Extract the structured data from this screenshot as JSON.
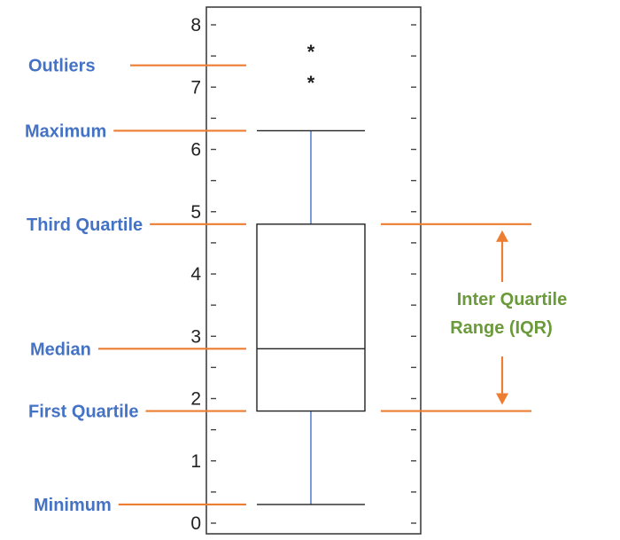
{
  "chart_data": {
    "type": "box",
    "ylim": [
      0,
      8
    ],
    "yticks": [
      "0",
      "1",
      "2",
      "3",
      "4",
      "5",
      "6",
      "7",
      "8"
    ],
    "box": {
      "min": 0.3,
      "q1": 1.8,
      "median": 2.8,
      "q3": 4.8,
      "max": 6.3
    },
    "outliers": [
      {
        "value": 7.1,
        "marker": "*"
      },
      {
        "value": 7.6,
        "marker": "*"
      }
    ]
  },
  "annotations": [
    {
      "id": "outliers",
      "label": "Outliers",
      "value": 7.35
    },
    {
      "id": "maximum",
      "label": "Maximum",
      "value": 6.3
    },
    {
      "id": "third-quartile",
      "label": "Third Quartile",
      "value": 4.8
    },
    {
      "id": "median",
      "label": "Median",
      "value": 2.8
    },
    {
      "id": "first-quartile",
      "label": "First Quartile",
      "value": 1.8
    },
    {
      "id": "minimum",
      "label": "Minimum",
      "value": 0.3
    }
  ],
  "iqr": {
    "line1": "Inter Quartile",
    "line2": "Range (IQR)"
  },
  "colors": {
    "annotation_line": "#ed7d31",
    "annotation_text": "#4472c4",
    "iqr_text": "#6a9a3a",
    "whisker": "#4472c4",
    "box": "#222222"
  }
}
